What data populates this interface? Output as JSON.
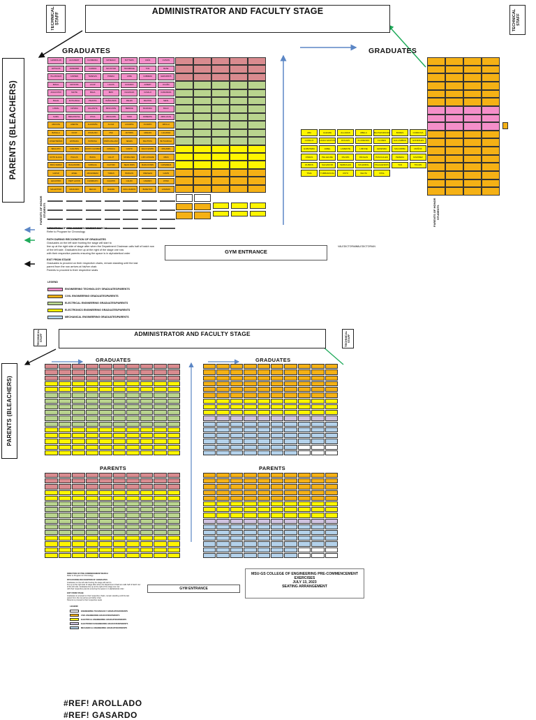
{
  "top": {
    "stage_title": "ADMINISTRATOR AND FACULTY STAGE",
    "tech_staff_left": "TECHNICAL STAFF",
    "tech_staff_right": "TECHNICAL STAFF",
    "bleachers": "PARENTS (BLEACHERS)",
    "graduates_left": "GRADUATES",
    "graduates_right": "GRADUATES",
    "parents_of_honor_students": "PARENTS OF HONOR STUDENTS",
    "gym_entrance": "GYM ENTRANCE",
    "valedictorian_1": "VALEDICTORIAN",
    "valedictorian_2": "VALEDICTORIAN",
    "left_block_rows": [
      [
        "LENDIOLAN",
        "ALCUDENT",
        "FLORENDA",
        "MATEAGO",
        "BUTTERS",
        "CAÑA",
        "CUISON"
      ],
      [
        "ARTIGUIS",
        "ANDENMR",
        "CARRAS",
        "NICUSTOR",
        "TRUMBOHE",
        "TON",
        "BASE"
      ],
      [
        "VILLANUEVA",
        "CARMEN",
        "TERESAS",
        "PINEDA",
        "LOBE",
        "CABRERA",
        "GERARDOS"
      ],
      [
        "BANAL",
        "MATIONS",
        "LICUP",
        "LAGOS",
        "GUIANDO",
        "ALBERT",
        "OCAÑO"
      ],
      [
        "ACHACOSO",
        "SANTE",
        "BAGA",
        "BRIO",
        "CHAVALES",
        "CASALO",
        "CAMARENA"
      ],
      [
        "BAGAI",
        "DUTILANGA",
        "PIHASTE",
        "PAÑULINOS",
        "PELEN",
        "BANTON",
        "SENIL"
      ],
      [
        "LINDAL",
        "CAÑADA",
        "SALVANTE",
        "PESCANTE",
        "BERESE",
        "BANASDA",
        "BAGO"
      ],
      [
        "SUMIL",
        "BESAONOSA",
        "ATICA",
        "ABOGUNIS",
        "TORO",
        "ROBERTA",
        "ABOLUCAS"
      ],
      [
        "ABAYATE",
        "ARENTE",
        "ALFAPEÑA",
        "ALCAZ",
        "AUJARTE",
        "OCAMPO",
        "ABOLLA"
      ],
      [
        "BATALLA",
        "OCOP",
        "VOCALISO",
        "VIVA",
        "ANTIPAS",
        "ARANAS",
        "LAGUNDA"
      ],
      [
        "JOSEP BEÑAS",
        "ESTRADA",
        "PATRONA",
        "PAÑIS MALANO",
        "NEVES",
        "BAUTISTA",
        "BUTUANOLA"
      ],
      [
        "BACLOTO",
        "CUALTRIN",
        "FAUSTO CAYABAN",
        "CONGCA",
        "CASTO",
        "FALCO ESPIN",
        "MOLAMIS"
      ],
      [
        "DOTO ALGUA",
        "PIAGUS",
        "BURIG",
        "CALUT",
        "MORALINES",
        "LIMI CAINAME",
        "UBAS"
      ],
      [
        "PAFÁ VERAN",
        "BAGANORIN",
        "SABAGUL",
        "FALTORI",
        "SEAN PARS",
        "MARA DOMIN",
        "CAPERENA"
      ],
      [
        "GAPAR",
        "JAMEL",
        "ABUANDERA",
        "TOMAS",
        "BURGOS",
        "OMESEAS",
        "GAMIS"
      ],
      [
        "LECASTRO",
        "PERT LAVON",
        "CANDIDATO",
        "CALMON",
        "CALDO",
        "CAMARO",
        "ATINO"
      ],
      [
        "MALENTINO",
        "MANCADO",
        "MECUA",
        "MARIAN",
        "RAUL RAMOS",
        "BURETINO",
        "LOMANIS"
      ]
    ],
    "right_block_rows": [
      [
        "ABA",
        "ALEGRE",
        "ALLADAS",
        "ABELA",
        "BALTAZARIANO",
        "BORES",
        "CORDOVA"
      ],
      [
        "CASILLO",
        "LINAN SANTOS",
        "DOGGIS",
        "FLORENDO",
        "FLORES",
        "GALLAMBAS",
        "GONZALES"
      ],
      [
        "GUBATERA",
        "JABEL",
        "LAMENTE",
        "LIMONE",
        "LEDESMA",
        "MACURIBA",
        "MUÑOZ"
      ],
      [
        "OSMAS",
        "PELLEGRE",
        "PALMIS",
        "PANGAN",
        "PASCUALES",
        "PEREDA",
        "RAMIREZ"
      ],
      [
        "RUBIOS",
        "SALVADOR",
        "SERRALES",
        "SOLEMPAL",
        "TAGALENDOS",
        "TAN",
        "TRUJIN"
      ],
      [
        "TIMA",
        "TUMBARANAL",
        "USTO",
        "VELITA",
        "VITAL"
      ]
    ],
    "path_notes": {
      "arrow_blue_head": "DIRECTION OF PRE-COMMENCEMENT MARCH",
      "arrow_blue_body": "Refer to Program for Chronology",
      "arrow_green_head": "PATH DURING RECOGNITION OF GRADUATES",
      "arrow_green_body_1": "Graduates on the left side fronting the stage will start to",
      "arrow_green_body_2": "line up at the right side of stage after when the Department Chairman calls half of batch row",
      "arrow_green_body_3": "of the left side. Graduates line up at the right of the stage one row",
      "arrow_green_body_4": "with their respective parents ensuring the space is in alphabetical order",
      "arrow_black_head": "EXIT FROM STAGE",
      "arrow_black_body_1": "Graduates to proceed on their respective chairs, remain standing until the last",
      "arrow_black_body_2": "parent from the row arrives at his/her chair.",
      "arrow_black_body_3": "Parents to proceed to their respective seats"
    },
    "legend_title": "LEGEND",
    "legend": [
      {
        "label": "ENGINEERING TECHNOLOGY GRADUATES/PARENTS",
        "color": "#f48fc9"
      },
      {
        "label": "CIVIL ENGINEERING GRADUATES/PARENTS",
        "color": "#f5b115"
      },
      {
        "label": "ELECTRICAL ENGINEERING GRADUATES/PARENTS",
        "color": "#b9d48e"
      },
      {
        "label": "ELECTRONICS ENGINEERING GRADUATES/PARENTS",
        "color": "#fff500"
      },
      {
        "label": "MECHANICAL ENGINEERING GRADUATES/PARENTS",
        "color": "#b4d2eb"
      }
    ]
  },
  "bottom": {
    "stage_title": "ADMINISTRATOR AND FACULTY STAGE",
    "tech_staff_left": "TECHNICAL STAFF",
    "tech_staff_right": "TECHNICAL STAFF",
    "bleachers": "PARENTS (BLEACHERS)",
    "graduates_left": "GRADUATES",
    "graduates_right": "GRADUATES",
    "parents_left": "PARENTS",
    "parents_right": "PARENTS",
    "gym_entrance": "GYM ENTRANCE",
    "info_1": "MSU-GS COLLEGE OF ENGINEERING PRE-COMMENCEMENT",
    "info_2": "EXERCISES",
    "info_3": "JULY 13, 2023",
    "info_4": "SEATING ARRANGEMENT",
    "path_notes": {
      "arrow_blue_head": "DIRECTION OF PRE-COMMENCEMENT MARCH",
      "arrow_blue_body": "Refer to Program for Chronology",
      "arrow_green_head": "PATH DURING RECOGNITION OF GRADUATES",
      "arrow_green_body_1": "Graduates on the left side fronting the stage will start to",
      "arrow_green_body_2": "line up at the right side of stage after when the Department Chairman calls half of batch row",
      "arrow_green_body_3": "of the left side. Graduates line up at the right of the stage one row",
      "arrow_green_body_4": "with their respective parents ensuring the space is in alphabetical order",
      "arrow_black_head": "EXIT FROM STAGE",
      "arrow_black_body_1": "Graduates to proceed on their respective chairs, remain standing until the last",
      "arrow_black_body_2": "parent from the row arrives at his/her chair.",
      "arrow_black_body_3": "Parents to proceed to their respective seats"
    },
    "legend_title": "LEGEND",
    "legend": [
      {
        "label": "ENGINEERING TECHNOLOGY GRADUATES/PARENTS",
        "color": "#ffffff"
      },
      {
        "label": "CIVIL ENGINEERING GRADUATES/PARENTS",
        "color": "#f5b115"
      },
      {
        "label": "ELECTRICAL ENGINEERING GRADUATES/PARENTS",
        "color": "#fff500"
      },
      {
        "label": "ELECTRONICS ENGINEERING GRADUATES/PARENTS",
        "color": "#cfc3e0"
      },
      {
        "label": "MECHANICAL ENGINEERING GRADUATES/PARENTS",
        "color": "#b4d2eb"
      }
    ]
  },
  "footer": {
    "line_1": "#REF! AROLLADO",
    "line_2": "#REF! GASARDO"
  }
}
